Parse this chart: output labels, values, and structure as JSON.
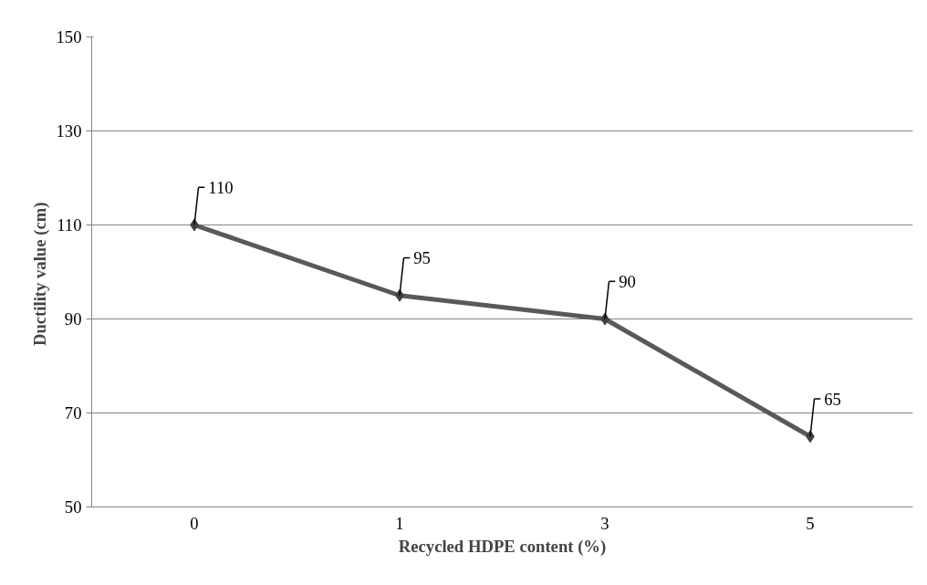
{
  "chart_data": {
    "type": "line",
    "xlabel": "Recycled HDPE content (%)",
    "ylabel": "Ductility  value (cm)",
    "categories": [
      "0",
      "1",
      "3",
      "5"
    ],
    "series": [
      {
        "color": "#595959",
        "values": [
          110,
          95,
          90,
          65
        ]
      }
    ],
    "ylim": [
      50,
      150
    ],
    "yticks": [
      50,
      70,
      90,
      110,
      130,
      150
    ],
    "grid": "y",
    "marker": "diamond",
    "data_labels": true
  }
}
